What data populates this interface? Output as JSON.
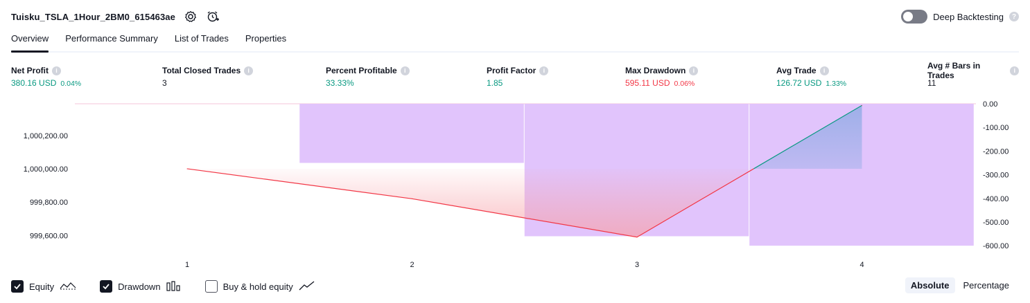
{
  "header": {
    "strategy_title": "Tuisku_TSLA_1Hour_2BM0_615463ae",
    "settings_icon": "gear-icon",
    "alert_icon": "alarm-clock-plus-icon"
  },
  "deep_backtesting": {
    "label": "Deep Backtesting",
    "enabled": false
  },
  "tabs": [
    {
      "label": "Overview",
      "active": true
    },
    {
      "label": "Performance Summary",
      "active": false
    },
    {
      "label": "List of Trades",
      "active": false
    },
    {
      "label": "Properties",
      "active": false
    }
  ],
  "metrics": [
    {
      "label": "Net Profit",
      "value": "380.16 USD",
      "pct": "0.04%",
      "tone": "pos"
    },
    {
      "label": "Total Closed Trades",
      "value": "3",
      "pct": "",
      "tone": "neutral"
    },
    {
      "label": "Percent Profitable",
      "value": "33.33%",
      "pct": "",
      "tone": "pos"
    },
    {
      "label": "Profit Factor",
      "value": "1.85",
      "pct": "",
      "tone": "pos"
    },
    {
      "label": "Max Drawdown",
      "value": "595.11 USD",
      "pct": "0.06%",
      "tone": "neg"
    },
    {
      "label": "Avg Trade",
      "value": "126.72 USD",
      "pct": "1.33%",
      "tone": "pos"
    },
    {
      "label": "Avg # Bars in Trades",
      "value": "11",
      "pct": "",
      "tone": "neutral"
    }
  ],
  "chart_data": {
    "type": "line",
    "x": [
      1,
      2,
      3,
      4
    ],
    "x_tick_labels": [
      "1",
      "2",
      "3",
      "4"
    ],
    "series": [
      {
        "name": "Equity",
        "axis": "left",
        "values": [
          1000000.0,
          999820.0,
          999590.0,
          1000380.16
        ]
      },
      {
        "name": "Drawdown",
        "axis": "right",
        "type": "bar",
        "values": [
          0,
          -250,
          -560,
          -600
        ]
      }
    ],
    "left_axis": {
      "range": [
        999510,
        1000390
      ],
      "ticks": [
        1000200,
        1000000,
        999800,
        999600
      ],
      "tick_labels": [
        "1,000,200.00",
        "1,000,000.00",
        "999,800.00",
        "999,600.00"
      ]
    },
    "right_axis": {
      "range": [
        -620,
        0
      ],
      "ticks": [
        0,
        -100,
        -200,
        -300,
        -400,
        -500,
        -600
      ],
      "tick_labels": [
        "0.00",
        "-100.00",
        "-200.00",
        "-300.00",
        "-400.00",
        "-500.00",
        "-600.00"
      ]
    },
    "colors": {
      "equity_loss": "#f23645",
      "equity_gain": "#089981",
      "drawdown": "#e1c4fc",
      "equity_fill": "#f7a1a8"
    },
    "grid": false
  },
  "legend": [
    {
      "label": "Equity",
      "checked": true,
      "icon": "equity-line-icon"
    },
    {
      "label": "Drawdown",
      "checked": true,
      "icon": "drawdown-bars-icon"
    },
    {
      "label": "Buy & hold equity",
      "checked": false,
      "icon": "buy-hold-line-icon"
    }
  ],
  "modes": [
    {
      "label": "Absolute",
      "active": true
    },
    {
      "label": "Percentage",
      "active": false
    }
  ]
}
